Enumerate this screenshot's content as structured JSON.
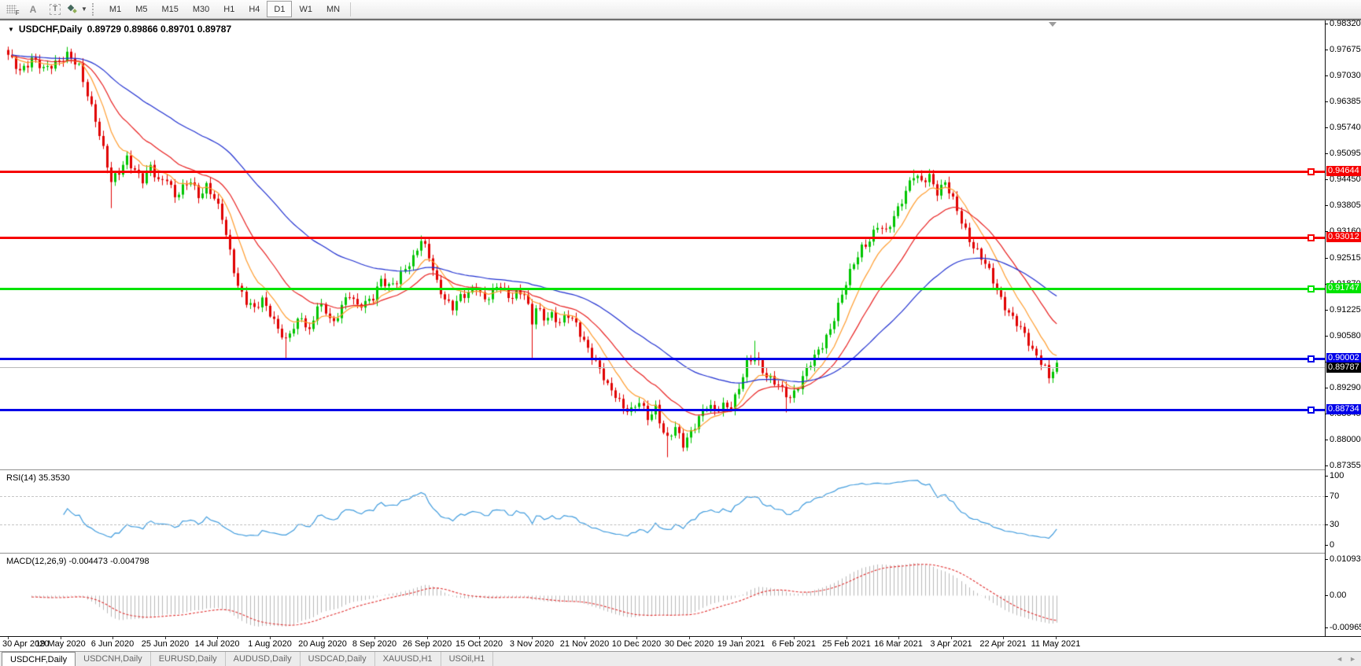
{
  "toolbar": {
    "icons": {
      "font_label": "A",
      "text_label": "T",
      "grid_f": "F",
      "caret": "▼",
      "tab_left": "◄",
      "tab_right": "►",
      "dropdown_triangle": "▼"
    },
    "timeframes": [
      "M1",
      "M5",
      "M15",
      "M30",
      "H1",
      "H4",
      "D1",
      "W1",
      "MN"
    ],
    "active_timeframe": "D1"
  },
  "chart": {
    "symbol": "USDCHF,Daily",
    "ohlc_text": "0.89729 0.89866 0.89701 0.89787",
    "open": 0.89729,
    "high": 0.89866,
    "low": 0.89701,
    "close": 0.89787
  },
  "price_axis": {
    "max": 0.9832,
    "min": 0.87355,
    "ticks": [
      "0.98320",
      "0.97675",
      "0.97030",
      "0.96385",
      "0.95740",
      "0.95095",
      "0.94450",
      "0.93805",
      "0.93160",
      "0.92515",
      "0.91870",
      "0.91225",
      "0.90580",
      "0.89935",
      "0.89290",
      "0.88645",
      "0.88000",
      "0.87355"
    ]
  },
  "hlines": [
    {
      "value": 0.94644,
      "label": "0.94644",
      "color": "#f60000"
    },
    {
      "value": 0.93012,
      "label": "0.93012",
      "color": "#f60000"
    },
    {
      "value": 0.91747,
      "label": "0.91747",
      "color": "#00e300"
    },
    {
      "value": 0.90002,
      "label": "0.90002",
      "color": "#0000e8"
    },
    {
      "value": 0.88734,
      "label": "0.88734",
      "color": "#0000e8"
    }
  ],
  "current_price": {
    "value": 0.89787,
    "label": "0.89787"
  },
  "dates": [
    "30 Apr 2020",
    "19 May 2020",
    "6 Jun 2020",
    "25 Jun 2020",
    "14 Jul 2020",
    "1 Aug 2020",
    "20 Aug 2020",
    "8 Sep 2020",
    "26 Sep 2020",
    "15 Oct 2020",
    "3 Nov 2020",
    "21 Nov 2020",
    "10 Dec 2020",
    "30 Dec 2020",
    "19 Jan 2021",
    "6 Feb 2021",
    "25 Feb 2021",
    "16 Mar 2021",
    "3 Apr 2021",
    "22 Apr 2021",
    "11 May 2021"
  ],
  "rsi": {
    "label": "RSI(14)",
    "value": "35.3530",
    "levels": [
      {
        "v": 100,
        "label": "100",
        "dashed": false
      },
      {
        "v": 70,
        "label": "70",
        "dashed": true
      },
      {
        "v": 30,
        "label": "30",
        "dashed": true
      },
      {
        "v": 0,
        "label": "0",
        "dashed": false
      }
    ],
    "color": "#3f9bdd"
  },
  "macd": {
    "label": "MACD(12,26,9)",
    "values": "-0.004473 -0.004798",
    "macd_last": -0.004473,
    "signal_last": -0.004798,
    "axis": [
      {
        "v": 0.010933,
        "label": "0.010933"
      },
      {
        "v": 0.0,
        "label": "0.00"
      },
      {
        "v": -0.009653,
        "label": "-0.009653"
      }
    ],
    "histogram_color": "#b9b9b9",
    "signal_color": "#e03030"
  },
  "tabs": [
    {
      "label": "USDCHF,Daily",
      "active": true
    },
    {
      "label": "USDCNH,Daily",
      "active": false
    },
    {
      "label": "EURUSD,Daily",
      "active": false
    },
    {
      "label": "AUDUSD,Daily",
      "active": false
    },
    {
      "label": "USDCAD,Daily",
      "active": false
    },
    {
      "label": "XAUUSD,H1",
      "active": false
    },
    {
      "label": "USOil,H1",
      "active": false
    }
  ],
  "chart_data": {
    "type": "candlestick",
    "symbol": "USDCHF",
    "timeframe": "Daily",
    "title": "USDCHF,Daily 0.89729 0.89866 0.89701 0.89787",
    "x_tick_labels": [
      "30 Apr 2020",
      "19 May 2020",
      "6 Jun 2020",
      "25 Jun 2020",
      "14 Jul 2020",
      "1 Aug 2020",
      "20 Aug 2020",
      "8 Sep 2020",
      "26 Sep 2020",
      "15 Oct 2020",
      "3 Nov 2020",
      "21 Nov 2020",
      "10 Dec 2020",
      "30 Dec 2020",
      "19 Jan 2021",
      "6 Feb 2021",
      "25 Feb 2021",
      "16 Mar 2021",
      "3 Apr 2021",
      "22 Apr 2021",
      "11 May 2021"
    ],
    "y_range": [
      0.87355,
      0.9832
    ],
    "candle_count": 265,
    "close_keyframes": [
      [
        0,
        0.975
      ],
      [
        3,
        0.972
      ],
      [
        6,
        0.9745
      ],
      [
        9,
        0.9715
      ],
      [
        12,
        0.974
      ],
      [
        15,
        0.9755
      ],
      [
        18,
        0.972
      ],
      [
        20,
        0.966
      ],
      [
        22,
        0.96
      ],
      [
        24,
        0.952
      ],
      [
        26,
        0.9435
      ],
      [
        28,
        0.9465
      ],
      [
        30,
        0.9505
      ],
      [
        32,
        0.947
      ],
      [
        34,
        0.944
      ],
      [
        36,
        0.9475
      ],
      [
        38,
        0.9445
      ],
      [
        40,
        0.9455
      ],
      [
        42,
        0.94
      ],
      [
        44,
        0.942
      ],
      [
        46,
        0.9445
      ],
      [
        48,
        0.941
      ],
      [
        50,
        0.943
      ],
      [
        52,
        0.9395
      ],
      [
        54,
        0.935
      ],
      [
        56,
        0.927
      ],
      [
        58,
        0.9185
      ],
      [
        60,
        0.914
      ],
      [
        62,
        0.912
      ],
      [
        64,
        0.915
      ],
      [
        66,
        0.912
      ],
      [
        68,
        0.9075
      ],
      [
        70,
        0.904
      ],
      [
        72,
        0.908
      ],
      [
        74,
        0.911
      ],
      [
        76,
        0.907
      ],
      [
        78,
        0.913
      ],
      [
        80,
        0.9115
      ],
      [
        82,
        0.909
      ],
      [
        84,
        0.914
      ],
      [
        86,
        0.916
      ],
      [
        88,
        0.9125
      ],
      [
        90,
        0.914
      ],
      [
        92,
        0.916
      ],
      [
        94,
        0.92
      ],
      [
        96,
        0.9175
      ],
      [
        98,
        0.919
      ],
      [
        100,
        0.923
      ],
      [
        102,
        0.9255
      ],
      [
        104,
        0.9295
      ],
      [
        106,
        0.925
      ],
      [
        108,
        0.919
      ],
      [
        110,
        0.9155
      ],
      [
        112,
        0.913
      ],
      [
        114,
        0.915
      ],
      [
        116,
        0.916
      ],
      [
        118,
        0.9185
      ],
      [
        120,
        0.915
      ],
      [
        122,
        0.9165
      ],
      [
        124,
        0.918
      ],
      [
        126,
        0.9155
      ],
      [
        128,
        0.917
      ],
      [
        130,
        0.9165
      ],
      [
        132,
        0.9085
      ],
      [
        133,
        0.9125
      ],
      [
        135,
        0.9105
      ],
      [
        137,
        0.9115
      ],
      [
        139,
        0.909
      ],
      [
        141,
        0.9105
      ],
      [
        143,
        0.9085
      ],
      [
        145,
        0.905
      ],
      [
        147,
        0.901
      ],
      [
        149,
        0.897
      ],
      [
        151,
        0.893
      ],
      [
        153,
        0.8915
      ],
      [
        155,
        0.8885
      ],
      [
        157,
        0.887
      ],
      [
        159,
        0.889
      ],
      [
        161,
        0.8855
      ],
      [
        163,
        0.8885
      ],
      [
        165,
        0.882
      ],
      [
        166,
        0.88
      ],
      [
        168,
        0.8825
      ],
      [
        170,
        0.879
      ],
      [
        172,
        0.8825
      ],
      [
        174,
        0.8855
      ],
      [
        176,
        0.888
      ],
      [
        178,
        0.887
      ],
      [
        180,
        0.889
      ],
      [
        182,
        0.8885
      ],
      [
        184,
        0.8925
      ],
      [
        186,
        0.8985
      ],
      [
        188,
        0.901
      ],
      [
        189,
        0.8995
      ],
      [
        191,
        0.896
      ],
      [
        193,
        0.894
      ],
      [
        195,
        0.892
      ],
      [
        197,
        0.8905
      ],
      [
        199,
        0.894
      ],
      [
        201,
        0.8975
      ],
      [
        203,
        0.9
      ],
      [
        205,
        0.9035
      ],
      [
        207,
        0.908
      ],
      [
        209,
        0.9135
      ],
      [
        211,
        0.9185
      ],
      [
        213,
        0.9235
      ],
      [
        215,
        0.928
      ],
      [
        217,
        0.93
      ],
      [
        219,
        0.933
      ],
      [
        221,
        0.931
      ],
      [
        223,
        0.9355
      ],
      [
        225,
        0.94
      ],
      [
        227,
        0.944
      ],
      [
        228,
        0.9455
      ],
      [
        230,
        0.9435
      ],
      [
        232,
        0.9455
      ],
      [
        234,
        0.942
      ],
      [
        236,
        0.944
      ],
      [
        238,
        0.939
      ],
      [
        240,
        0.934
      ],
      [
        242,
        0.93
      ],
      [
        244,
        0.927
      ],
      [
        246,
        0.9235
      ],
      [
        248,
        0.919
      ],
      [
        250,
        0.915
      ],
      [
        252,
        0.912
      ],
      [
        254,
        0.909
      ],
      [
        256,
        0.9055
      ],
      [
        258,
        0.902
      ],
      [
        260,
        0.9
      ],
      [
        261,
        0.8985
      ],
      [
        262,
        0.8955
      ],
      [
        263,
        0.8975
      ],
      [
        264,
        0.8979
      ]
    ],
    "wick_overrides": {
      "26": {
        "low": 0.9375
      },
      "70": {
        "low": 0.9002
      },
      "132": {
        "low": 0.9003
      },
      "166": {
        "low": 0.8757
      },
      "188": {
        "high": 0.9046
      },
      "196": {
        "low": 0.8868
      },
      "228": {
        "high": 0.9471
      }
    },
    "moving_averages": [
      {
        "period": 9,
        "color": "#ff9c2e",
        "name": "ma-fast"
      },
      {
        "period": 21,
        "color": "#e82020",
        "name": "ma-mid"
      },
      {
        "period": 55,
        "color": "#2030d0",
        "name": "ma-slow"
      }
    ],
    "indicators": {
      "rsi": {
        "period": 14,
        "last": 35.353,
        "levels": [
          70,
          30
        ],
        "range": [
          0,
          100
        ]
      },
      "macd": {
        "fast": 12,
        "slow": 26,
        "signal": 9,
        "last_macd": -0.004473,
        "last_signal": -0.004798,
        "axis_range": [
          -0.009653,
          0.010933
        ]
      }
    },
    "horizontal_lines": [
      0.94644,
      0.93012,
      0.91747,
      0.90002,
      0.88734
    ],
    "style": {
      "up_color": "#00c400",
      "down_color": "#e00000",
      "bg": "#ffffff"
    }
  }
}
